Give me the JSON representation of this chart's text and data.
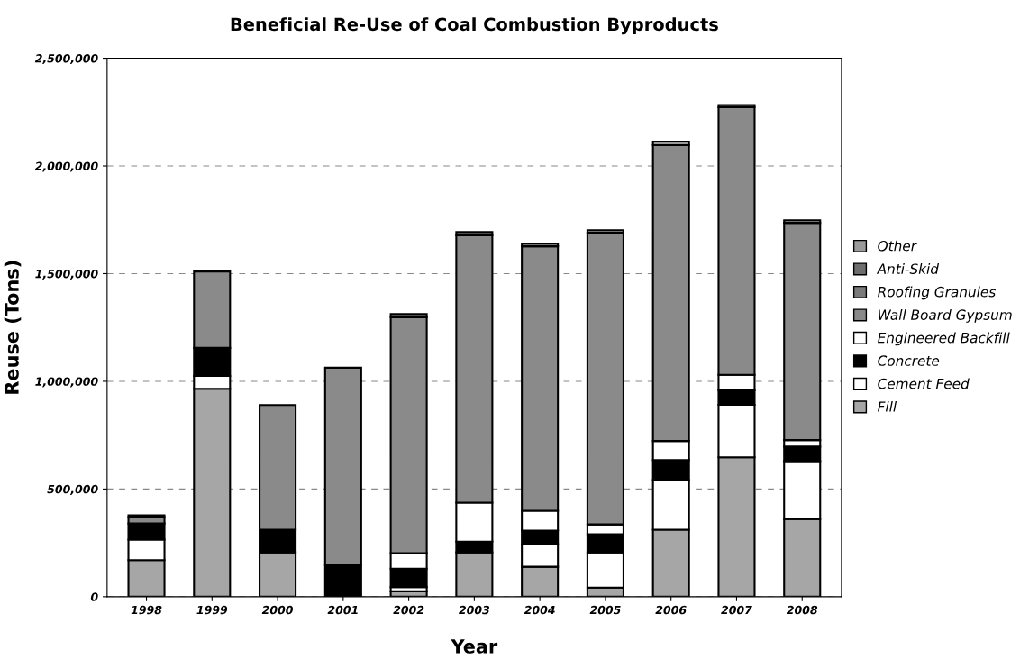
{
  "chart_data": {
    "type": "bar",
    "stacked": true,
    "title": "Beneficial Re-Use of Coal Combustion Byproducts",
    "xlabel": "Year",
    "ylabel": "Reuse (Tons)",
    "categories": [
      "1998",
      "1999",
      "2000",
      "2001",
      "2002",
      "2003",
      "2004",
      "2005",
      "2006",
      "2007",
      "2008"
    ],
    "series": [
      {
        "name": "Fill",
        "color": "#a6a6a6",
        "values": [
          170000,
          965000,
          206000,
          null,
          25000,
          206000,
          139000,
          42000,
          311000,
          647000,
          361000
        ]
      },
      {
        "name": "Cement Feed",
        "color": "#ffffff",
        "values": [
          95000,
          60000,
          0,
          0,
          20000,
          0,
          105000,
          164000,
          231000,
          244000,
          269000
        ]
      },
      {
        "name": "Concrete",
        "color": "#000000",
        "values": [
          75000,
          130000,
          105000,
          148000,
          85000,
          50000,
          63000,
          84000,
          92000,
          67000,
          67000
        ]
      },
      {
        "name": "Engineered Backfill",
        "color": "#ffffff",
        "values": [
          0,
          0,
          0,
          0,
          72000,
          181000,
          92000,
          46000,
          89000,
          72000,
          30000
        ]
      },
      {
        "name": "Wall Board Gypsum",
        "color": "#8a8a8a",
        "values": [
          30000,
          355000,
          579000,
          915000,
          1095000,
          1241000,
          1228000,
          1354000,
          1373000,
          1242000,
          1009000
        ]
      },
      {
        "name": "Roofing Granules",
        "color": "#7a7a7a",
        "values": [
          0,
          0,
          0,
          0,
          0,
          0,
          0,
          0,
          0,
          0,
          0
        ]
      },
      {
        "name": "Anti-Skid",
        "color": "#6e6e6e",
        "values": [
          0,
          0,
          0,
          0,
          0,
          0,
          0,
          0,
          0,
          0,
          0
        ]
      },
      {
        "name": "Other",
        "color": "#9a9a9a",
        "values": [
          8000,
          0,
          0,
          0,
          15000,
          15000,
          12000,
          12000,
          17000,
          10000,
          12000
        ]
      }
    ],
    "ylim": [
      0,
      2500000
    ],
    "yticks": [
      0,
      {
        "value": 500000,
        "label": "500,000"
      },
      {
        "value": 1000000,
        "label": "1,000,000"
      },
      {
        "value": 1500000,
        "label": "1,500,000"
      },
      {
        "value": 2000000,
        "label": "2,000,000"
      },
      {
        "value": 2500000,
        "label": "2,500,000"
      }
    ],
    "grid": "y",
    "legend": "right"
  }
}
